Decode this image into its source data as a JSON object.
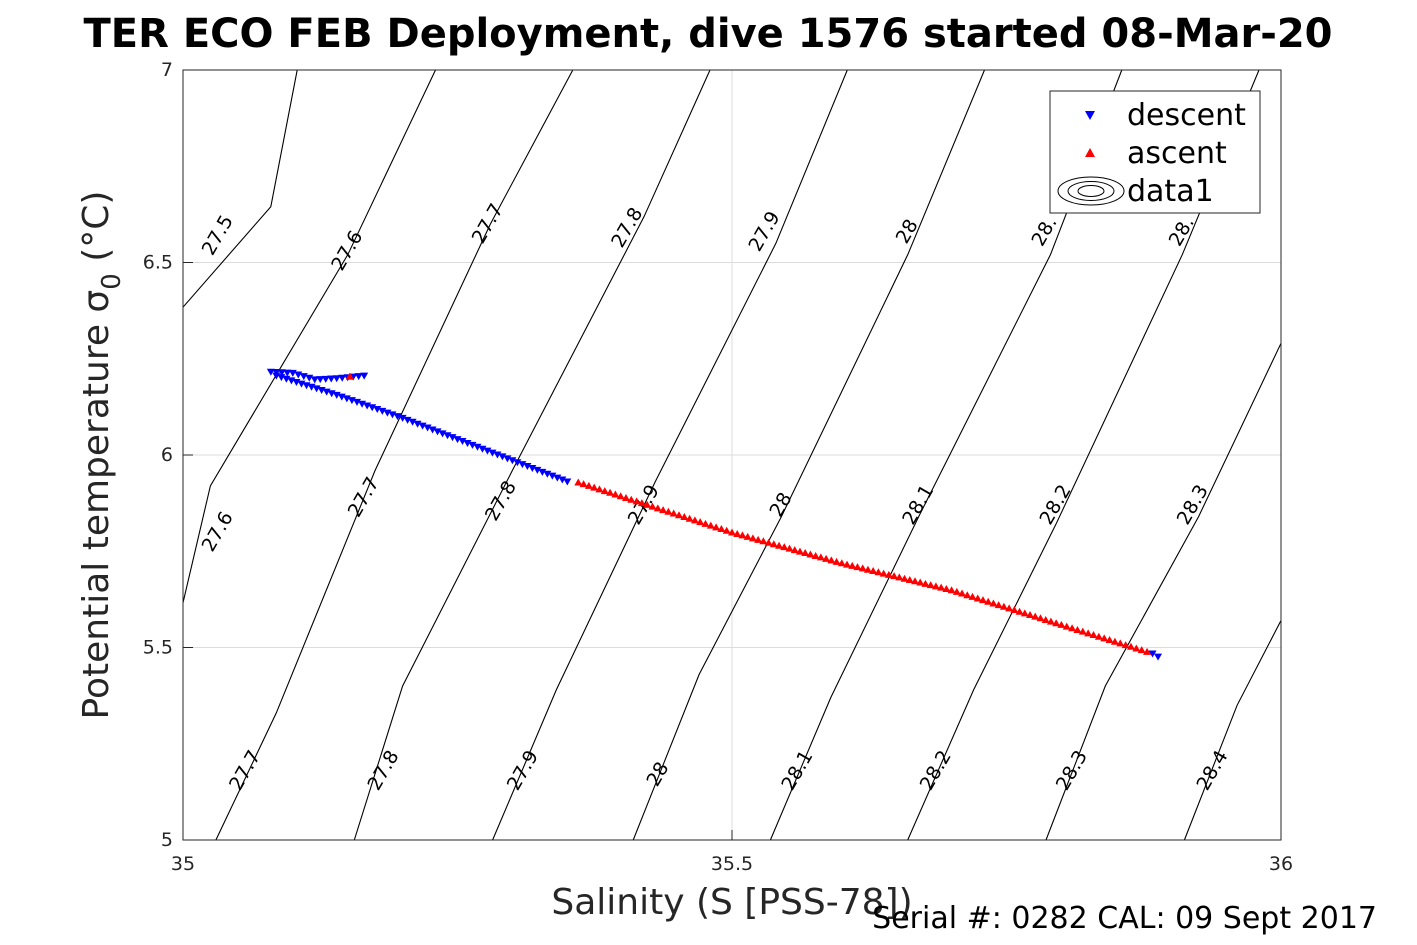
{
  "chart_data": {
    "type": "scatter",
    "title": "TER ECO FEB Deployment, dive 1576 started 08-Mar-20",
    "xlabel": "Salinity (S [PSS-78])",
    "ylabel_main": "Potential temperature σ",
    "ylabel_sub": "0",
    "ylabel_unit": " (°C)",
    "xlim": [
      35,
      36
    ],
    "ylim": [
      5,
      7
    ],
    "xticks": [
      35,
      35.5,
      36
    ],
    "xtick_labels": [
      "35",
      "35.5",
      "36"
    ],
    "yticks": [
      5,
      5.5,
      6,
      6.5,
      7
    ],
    "ytick_labels": [
      "5",
      "5.5",
      "6",
      "6.5",
      "7"
    ],
    "grid": true,
    "legend_position": "top-right",
    "legend": [
      "descent",
      "ascent",
      "data1"
    ],
    "series": [
      {
        "name": "descent",
        "marker": "triangle-down",
        "color": "#0000ff",
        "segments": [
          {
            "x": [
              35.08,
              35.1,
              35.12,
              35.14,
              35.165
            ],
            "y": [
              6.215,
              6.212,
              6.195,
              6.198,
              6.205
            ]
          },
          {
            "x": [
              35.085,
              35.14,
              35.2,
              35.25,
              35.3,
              35.35
            ],
            "y": [
              6.205,
              6.155,
              6.095,
              6.04,
              5.985,
              5.93
            ]
          },
          {
            "x": [
              35.883,
              35.888
            ],
            "y": [
              5.483,
              5.475
            ]
          }
        ]
      },
      {
        "name": "ascent",
        "marker": "triangle-up",
        "color": "#ff0000",
        "segments": [
          {
            "x": [
              35.36,
              35.5,
              35.6,
              35.7,
              35.8,
              35.878
            ],
            "y": [
              5.93,
              5.8,
              5.72,
              5.65,
              5.56,
              5.49
            ]
          },
          {
            "x": [
              35.152,
              35.152
            ],
            "y": [
              6.205,
              6.205
            ]
          }
        ]
      }
    ],
    "density_contours": {
      "name": "data1",
      "levels": [
        {
          "value": "27.5",
          "points": [
            [
              35.0,
              6.384
            ],
            [
              35.08,
              6.645
            ],
            [
              35.104,
              7.0
            ]
          ]
        },
        {
          "value": "27.6",
          "points": [
            [
              35.0,
              5.616
            ],
            [
              35.025,
              5.92
            ],
            [
              35.15,
              6.52
            ],
            [
              35.23,
              7.0
            ]
          ]
        },
        {
          "value": "27.7",
          "points": [
            [
              35.03,
              5.0
            ],
            [
              35.085,
              5.33
            ],
            [
              35.175,
              5.96
            ],
            [
              35.28,
              6.6
            ],
            [
              35.355,
              7.0
            ]
          ]
        },
        {
          "value": "27.8",
          "points": [
            [
              35.156,
              5.0
            ],
            [
              35.2,
              5.4
            ],
            [
              35.3,
              5.96
            ],
            [
              35.42,
              6.62
            ],
            [
              35.48,
              7.0
            ]
          ]
        },
        {
          "value": "27.9",
          "points": [
            [
              35.282,
              5.0
            ],
            [
              35.34,
              5.39
            ],
            [
              35.43,
              5.93
            ],
            [
              35.54,
              6.55
            ],
            [
              35.605,
              7.0
            ]
          ]
        },
        {
          "value": "28",
          "points": [
            [
              35.41,
              5.0
            ],
            [
              35.47,
              5.43
            ],
            [
              35.545,
              5.84
            ],
            [
              35.66,
              6.52
            ],
            [
              35.73,
              7.0
            ]
          ]
        },
        {
          "value": "28.1",
          "points": [
            [
              35.535,
              5.0
            ],
            [
              35.59,
              5.37
            ],
            [
              35.67,
              5.84
            ],
            [
              35.79,
              6.52
            ],
            [
              35.855,
              7.0
            ]
          ]
        },
        {
          "value": "28.2",
          "points": [
            [
              35.66,
              5.0
            ],
            [
              35.72,
              5.39
            ],
            [
              35.795,
              5.82
            ],
            [
              35.91,
              6.52
            ],
            [
              35.98,
              7.0
            ]
          ]
        },
        {
          "value": "28.3",
          "points": [
            [
              35.786,
              5.0
            ],
            [
              35.84,
              5.4
            ],
            [
              35.925,
              5.84
            ],
            [
              36.0,
              6.29
            ]
          ]
        },
        {
          "value": "28.4",
          "points": [
            [
              35.912,
              5.0
            ],
            [
              35.96,
              5.35
            ],
            [
              36.0,
              5.57
            ]
          ]
        }
      ],
      "labels": [
        {
          "text": "27.5",
          "x": 35.032,
          "y": 6.57
        },
        {
          "text": "27.6",
          "x": 35.15,
          "y": 6.53
        },
        {
          "text": "27.7",
          "x": 35.278,
          "y": 6.6
        },
        {
          "text": "27.8",
          "x": 35.405,
          "y": 6.59
        },
        {
          "text": "27.9",
          "x": 35.53,
          "y": 6.58
        },
        {
          "text": "28",
          "x": 35.66,
          "y": 6.58
        },
        {
          "text": "28.",
          "x": 35.785,
          "y": 6.58
        },
        {
          "text": "28.",
          "x": 35.91,
          "y": 6.58
        },
        {
          "text": "27.6",
          "x": 35.032,
          "y": 5.8
        },
        {
          "text": "27.7",
          "x": 35.165,
          "y": 5.89
        },
        {
          "text": "27.8",
          "x": 35.29,
          "y": 5.88
        },
        {
          "text": "27.9",
          "x": 35.42,
          "y": 5.87
        },
        {
          "text": "28",
          "x": 35.545,
          "y": 5.87
        },
        {
          "text": "28.1",
          "x": 35.67,
          "y": 5.87
        },
        {
          "text": "28.2",
          "x": 35.795,
          "y": 5.87
        },
        {
          "text": "28.3",
          "x": 35.92,
          "y": 5.87
        },
        {
          "text": "27.7",
          "x": 35.057,
          "y": 5.18
        },
        {
          "text": "27.8",
          "x": 35.183,
          "y": 5.18
        },
        {
          "text": "27.9",
          "x": 35.31,
          "y": 5.18
        },
        {
          "text": "28",
          "x": 35.433,
          "y": 5.17
        },
        {
          "text": "28.1",
          "x": 35.56,
          "y": 5.18
        },
        {
          "text": "28.2",
          "x": 35.686,
          "y": 5.18
        },
        {
          "text": "28.3",
          "x": 35.81,
          "y": 5.18
        },
        {
          "text": "28.4",
          "x": 35.938,
          "y": 5.18
        }
      ]
    }
  },
  "footer_text": "Serial #: 0282  CAL: 09 Sept 2017"
}
